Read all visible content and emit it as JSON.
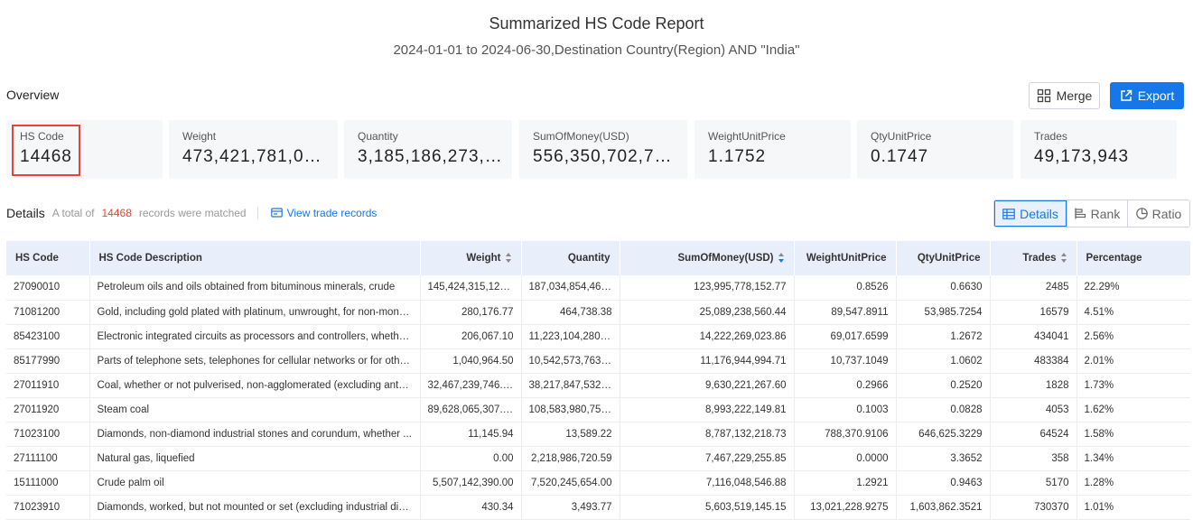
{
  "report": {
    "title": "Summarized HS Code Report",
    "subtitle": "2024-01-01 to 2024-06-30,Destination Country(Region) AND \"India\""
  },
  "overview": {
    "label": "Overview",
    "merge_label": "Merge",
    "export_label": "Export",
    "stats": [
      {
        "label": "HS Code",
        "value": "14468"
      },
      {
        "label": "Weight",
        "value": "473,421,781,02..."
      },
      {
        "label": "Quantity",
        "value": "3,185,186,273,2..."
      },
      {
        "label": "SumOfMoney(USD)",
        "value": "556,350,702,70..."
      },
      {
        "label": "WeightUnitPrice",
        "value": "1.1752"
      },
      {
        "label": "QtyUnitPrice",
        "value": "0.1747"
      },
      {
        "label": "Trades",
        "value": "49,173,943"
      }
    ]
  },
  "details": {
    "title": "Details",
    "total_prefix": "A total of",
    "total_count": "14468",
    "total_suffix": "records were matched",
    "view_link": "View trade records",
    "tabs": [
      "Details",
      "Rank",
      "Ratio"
    ],
    "active_tab": "Details"
  },
  "table": {
    "headers": [
      "HS Code",
      "HS Code Description",
      "Weight",
      "Quantity",
      "SumOfMoney(USD)",
      "WeightUnitPrice",
      "QtyUnitPrice",
      "Trades",
      "Percentage"
    ],
    "rows": [
      [
        "27090010",
        "Petroleum oils and oils obtained from bituminous minerals, crude",
        "145,424,315,120....",
        "187,034,854,466....",
        "123,995,778,152.77",
        "0.8526",
        "0.6630",
        "2485",
        "22.29%"
      ],
      [
        "71081200",
        "Gold, including gold plated with platinum, unwrought, for non-mone...",
        "280,176.77",
        "464,738.38",
        "25,089,238,560.44",
        "89,547.8911",
        "53,985.7254",
        "16579",
        "4.51%"
      ],
      [
        "85423100",
        "Electronic integrated circuits as processors and controllers, whether...",
        "206,067.10",
        "11,223,104,280.03",
        "14,222,269,023.86",
        "69,017.6599",
        "1.2672",
        "434041",
        "2.56%"
      ],
      [
        "85177990",
        "Parts of telephone sets, telephones for cellular networks or for other...",
        "1,040,964.50",
        "10,542,573,763.03",
        "11,176,944,994.71",
        "10,737.1049",
        "1.0602",
        "483384",
        "2.01%"
      ],
      [
        "27011910",
        "Coal, whether or not pulverised, non-agglomerated (excluding anthr...",
        "32,467,239,746.70",
        "38,217,847,532.70",
        "9,630,221,267.60",
        "0.2966",
        "0.2520",
        "1828",
        "1.73%"
      ],
      [
        "27011920",
        "Steam coal",
        "89,628,065,307.00",
        "108,583,980,751....",
        "8,993,222,149.81",
        "0.1003",
        "0.0828",
        "4053",
        "1.62%"
      ],
      [
        "71023100",
        "Diamonds, non-diamond industrial stones and corundum, whether ...",
        "11,145.94",
        "13,589.22",
        "8,787,132,218.73",
        "788,370.9106",
        "646,625.3229",
        "64524",
        "1.58%"
      ],
      [
        "27111100",
        "Natural gas, liquefied",
        "0.00",
        "2,218,986,720.59",
        "7,467,229,255.85",
        "0.0000",
        "3.3652",
        "358",
        "1.34%"
      ],
      [
        "15111000",
        "Crude palm oil",
        "5,507,142,390.00",
        "7,520,245,654.00",
        "7,116,048,546.88",
        "1.2921",
        "0.9463",
        "5170",
        "1.28%"
      ],
      [
        "71023910",
        "Diamonds, worked, but not mounted or set (excluding industrial dia...",
        "430.34",
        "3,493.77",
        "5,603,519,145.15",
        "13,021,228.9275",
        "1,603,862.3521",
        "730370",
        "1.01%"
      ]
    ]
  },
  "colors": {
    "accent": "#1677e8",
    "highlight": "#e0473a",
    "header_bg": "#e9eefb"
  }
}
